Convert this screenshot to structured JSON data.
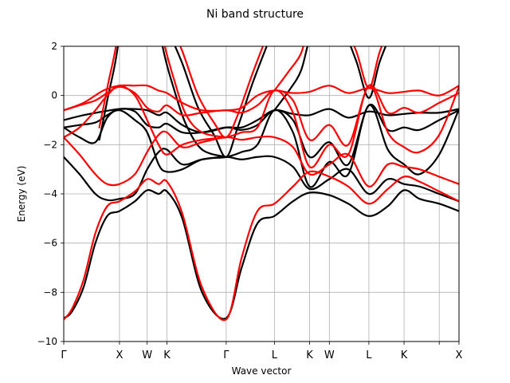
{
  "chart_data": {
    "type": "line",
    "title": "Ni band structure",
    "xlabel": "Wave vector",
    "ylabel": "Energy (eV)",
    "ylim": [
      -10,
      2
    ],
    "xlim": [
      0,
      1
    ],
    "yticks": [
      -10,
      -8,
      -6,
      -4,
      -2,
      0,
      2
    ],
    "grid": true,
    "kpoints": [
      {
        "label": "Γ",
        "x": 0.0
      },
      {
        "label": "X",
        "x": 0.141
      },
      {
        "label": "W",
        "x": 0.211
      },
      {
        "label": "K",
        "x": 0.261
      },
      {
        "label": "Γ",
        "x": 0.411
      },
      {
        "label": "L",
        "x": 0.533
      },
      {
        "label": "K",
        "x": 0.622
      },
      {
        "label": "W",
        "x": 0.672
      },
      {
        "label": "L",
        "x": 0.772
      },
      {
        "label": "K",
        "x": 0.861
      },
      {
        "label": "",
        "x": 0.95
      },
      {
        "label": "X",
        "x": 1.0
      }
    ],
    "series": [
      {
        "color": "#000000",
        "bands": [
          {
            "x": [
              0,
              0.02,
              0.05,
              0.08,
              0.11,
              0.141,
              0.18,
              0.211,
              0.24,
              0.261,
              0.3,
              0.35,
              0.411,
              0.45,
              0.49,
              0.533,
              0.58,
              0.622,
              0.672,
              0.72,
              0.772,
              0.82,
              0.861,
              0.9,
              0.95,
              1.0
            ],
            "y": [
              -9.05,
              -8.8,
              -7.8,
              -6.0,
              -4.9,
              -4.7,
              -4.3,
              -3.85,
              -4.0,
              -3.9,
              -5.0,
              -8.0,
              -9.05,
              -7.0,
              -5.2,
              -4.9,
              -4.3,
              -3.95,
              -4.05,
              -4.4,
              -4.9,
              -4.5,
              -3.85,
              -4.2,
              -4.4,
              -4.7
            ]
          },
          {
            "x": [
              0,
              0.04,
              0.08,
              0.11,
              0.141,
              0.18,
              0.211,
              0.24,
              0.261,
              0.3,
              0.35,
              0.411,
              0.45,
              0.49,
              0.533,
              0.58,
              0.622,
              0.672,
              0.72,
              0.772,
              0.82,
              0.861,
              0.9,
              0.95,
              1.0
            ],
            "y": [
              -2.5,
              -3.2,
              -4.0,
              -4.25,
              -4.2,
              -4.0,
              -3.0,
              -2.3,
              -2.2,
              -2.8,
              -2.6,
              -2.5,
              -2.6,
              -2.5,
              -2.5,
              -2.9,
              -3.8,
              -3.4,
              -3.0,
              -4.0,
              -3.4,
              -3.6,
              -3.7,
              -4.0,
              -4.3
            ]
          },
          {
            "x": [
              0,
              0.04,
              0.08,
              0.11,
              0.141,
              0.18,
              0.211,
              0.24,
              0.261,
              0.3,
              0.35,
              0.411,
              0.45,
              0.49,
              0.533,
              0.58,
              0.622,
              0.672,
              0.72,
              0.772,
              0.82,
              0.861,
              0.9,
              0.95,
              1.0
            ],
            "y": [
              -1.3,
              -1.7,
              -1.9,
              -0.9,
              -0.6,
              -1.0,
              -1.5,
              -2.8,
              -3.1,
              -3.0,
              -2.6,
              -2.5,
              -2.3,
              -2.0,
              -0.6,
              -1.5,
              -3.7,
              -2.7,
              -3.2,
              -0.4,
              -2.2,
              -2.8,
              -3.2,
              -2.4,
              -0.55
            ]
          },
          {
            "x": [
              0,
              0.04,
              0.08,
              0.11,
              0.141,
              0.18,
              0.211,
              0.24,
              0.261,
              0.3,
              0.35,
              0.411,
              0.45,
              0.49,
              0.533,
              0.58,
              0.622,
              0.672,
              0.72,
              0.772,
              0.82,
              0.861,
              0.9,
              0.95,
              1.0
            ],
            "y": [
              -1.3,
              -1.2,
              -1.1,
              -0.8,
              -0.55,
              -0.65,
              -1.2,
              -1.3,
              -1.15,
              -1.5,
              -1.5,
              -1.3,
              -1.4,
              -1.2,
              -0.6,
              -1.0,
              -2.5,
              -1.9,
              -2.8,
              -0.4,
              -1.4,
              -1.3,
              -1.4,
              -1.0,
              -0.6
            ]
          },
          {
            "x": [
              0,
              0.05,
              0.1,
              0.141,
              0.18,
              0.211,
              0.24,
              0.261,
              0.3,
              0.35,
              0.411,
              0.45,
              0.49,
              0.533,
              0.58,
              0.622,
              0.672,
              0.72,
              0.772,
              0.82,
              0.861,
              0.9,
              0.95,
              1.0
            ],
            "y": [
              -1.0,
              -0.8,
              -0.65,
              -0.55,
              -0.55,
              -0.6,
              -0.8,
              -0.7,
              -1.2,
              -1.5,
              -1.3,
              -1.3,
              -1.0,
              -0.6,
              -0.75,
              -0.8,
              -0.55,
              -0.9,
              -0.65,
              -0.8,
              -0.75,
              -0.7,
              -0.7,
              -0.55
            ]
          },
          {
            "x": [
              0.09,
              0.11,
              0.141,
              0.17,
              0.211,
              0.24,
              0.261,
              0.3,
              0.34,
              0.38,
              0.411,
              0.44,
              0.48,
              0.533
            ],
            "y": [
              -1.8,
              -0.2,
              2.5,
              8.0,
              6.0,
              4.0,
              2.8,
              1.3,
              -0.5,
              -1.6,
              -2.5,
              -1.3,
              0.6,
              2.8
            ]
          },
          {
            "x": [
              0.22,
              0.25,
              0.28,
              0.31,
              0.35,
              0.411
            ],
            "y": [
              5.0,
              2.0,
              0.2,
              -1.2,
              -2.2,
              -2.5
            ]
          },
          {
            "x": [
              0.533,
              0.57,
              0.6,
              0.622,
              0.66,
              0.7,
              0.74,
              0.772,
              0.8,
              0.84,
              0.861,
              0.92,
              1.0
            ],
            "y": [
              -0.6,
              0.2,
              1.0,
              2.3,
              4.0,
              3.0,
              1.4,
              -0.1,
              1.4,
              3.0,
              4.0,
              3.0,
              2.5
            ]
          }
        ]
      },
      {
        "color": "#ff0000",
        "bands": [
          {
            "x": [
              0,
              0.02,
              0.05,
              0.08,
              0.11,
              0.141,
              0.18,
              0.211,
              0.24,
              0.261,
              0.3,
              0.35,
              0.411,
              0.45,
              0.49,
              0.533,
              0.58,
              0.622,
              0.672,
              0.72,
              0.772,
              0.82,
              0.861,
              0.9,
              0.95,
              1.0
            ],
            "y": [
              -9.1,
              -8.7,
              -7.5,
              -5.6,
              -4.5,
              -4.3,
              -3.9,
              -3.4,
              -3.6,
              -3.5,
              -4.8,
              -7.8,
              -9.1,
              -6.6,
              -4.7,
              -4.4,
              -3.7,
              -3.1,
              -3.3,
              -3.7,
              -4.4,
              -3.8,
              -3.3,
              -3.5,
              -3.9,
              -4.3
            ]
          },
          {
            "x": [
              0,
              0.04,
              0.08,
              0.11,
              0.141,
              0.18,
              0.211,
              0.24,
              0.261,
              0.3,
              0.35,
              0.411,
              0.45,
              0.49,
              0.533,
              0.58,
              0.622,
              0.672,
              0.72,
              0.772,
              0.82,
              0.861,
              0.9,
              0.95,
              1.0
            ],
            "y": [
              -1.7,
              -2.4,
              -3.2,
              -3.6,
              -3.6,
              -3.2,
              -2.3,
              -1.6,
              -1.5,
              -2.1,
              -1.9,
              -1.7,
              -1.8,
              -1.7,
              -1.7,
              -2.1,
              -3.2,
              -2.8,
              -2.4,
              -3.7,
              -2.8,
              -2.9,
              -3.0,
              -3.3,
              -3.6
            ]
          },
          {
            "x": [
              0,
              0.04,
              0.08,
              0.11,
              0.141,
              0.18,
              0.211,
              0.24,
              0.261,
              0.3,
              0.35,
              0.411,
              0.45,
              0.49,
              0.533,
              0.58,
              0.622,
              0.672,
              0.72,
              0.772,
              0.82,
              0.861,
              0.9,
              0.95,
              1.0
            ],
            "y": [
              -1.7,
              -1.3,
              -0.6,
              0.0,
              0.4,
              0.0,
              -1.0,
              -2.0,
              -2.4,
              -2.0,
              -1.8,
              -1.7,
              -1.5,
              -1.3,
              0.2,
              -0.7,
              -2.9,
              -2.0,
              -2.4,
              0.4,
              -1.5,
              -2.1,
              -2.3,
              -1.6,
              0.35
            ]
          },
          {
            "x": [
              0,
              0.04,
              0.08,
              0.11,
              0.141,
              0.18,
              0.211,
              0.24,
              0.261,
              0.3,
              0.35,
              0.411,
              0.45,
              0.49,
              0.533,
              0.58,
              0.622,
              0.672,
              0.72,
              0.772,
              0.82,
              0.861,
              0.9,
              0.95,
              1.0
            ],
            "y": [
              -0.6,
              -0.4,
              -0.2,
              0.1,
              0.35,
              0.1,
              -0.5,
              -0.65,
              -0.4,
              -0.8,
              -0.7,
              -0.6,
              -0.7,
              -0.4,
              0.2,
              -0.2,
              -1.8,
              -1.2,
              -2.0,
              0.4,
              -0.7,
              -0.5,
              -0.7,
              -0.3,
              0.1
            ]
          },
          {
            "x": [
              0,
              0.05,
              0.1,
              0.141,
              0.18,
              0.211,
              0.24,
              0.261,
              0.3,
              0.35,
              0.411,
              0.45,
              0.49,
              0.533,
              0.58,
              0.622,
              0.672,
              0.72,
              0.772,
              0.82,
              0.861,
              0.9,
              0.95,
              1.0
            ],
            "y": [
              -0.6,
              -0.3,
              0.2,
              0.4,
              0.4,
              0.4,
              0.2,
              0.1,
              -0.3,
              -0.6,
              -0.6,
              -0.5,
              0.0,
              0.2,
              0.1,
              0.15,
              0.4,
              0.1,
              0.3,
              0.1,
              0.15,
              0.2,
              0.0,
              0.4
            ]
          },
          {
            "x": [
              0.09,
              0.11,
              0.141,
              0.17,
              0.211,
              0.24,
              0.261,
              0.3,
              0.34,
              0.38,
              0.411,
              0.44,
              0.48,
              0.533
            ],
            "y": [
              -1.3,
              0.3,
              3.0,
              8.5,
              6.5,
              4.5,
              3.3,
              1.8,
              0.0,
              -1.1,
              -1.7,
              -0.8,
              1.0,
              3.2
            ]
          },
          {
            "x": [
              0.22,
              0.25,
              0.28,
              0.31,
              0.35,
              0.411
            ],
            "y": [
              5.2,
              2.4,
              0.6,
              -0.8,
              -1.5,
              -1.7
            ]
          },
          {
            "x": [
              0.533,
              0.57,
              0.6,
              0.622,
              0.66,
              0.7,
              0.74,
              0.772,
              0.8,
              0.84,
              0.861,
              0.92,
              1.0
            ],
            "y": [
              0.2,
              1.0,
              1.7,
              2.9,
              4.5,
              3.3,
              1.8,
              0.3,
              1.8,
              3.4,
              4.4,
              3.5,
              3.0
            ]
          }
        ]
      }
    ]
  }
}
